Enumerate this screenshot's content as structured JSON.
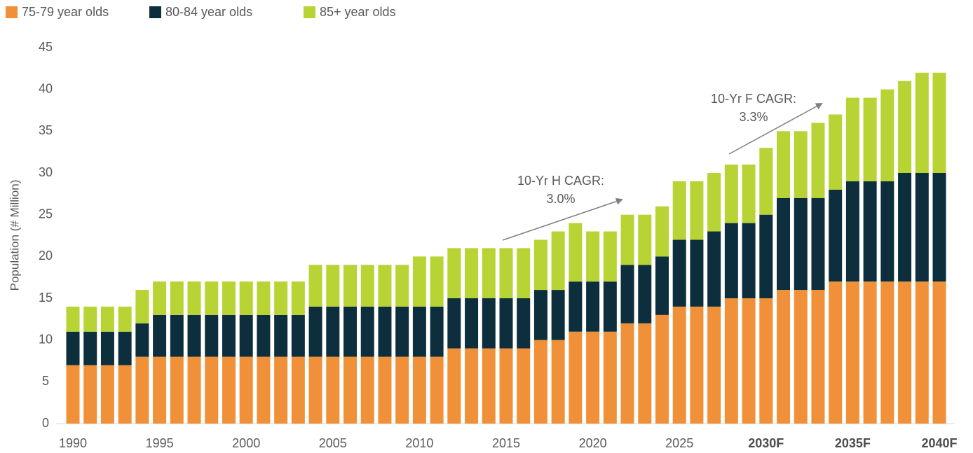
{
  "chart_data": {
    "type": "stacked_bar",
    "y_label": "Population (# Million)",
    "categories": [
      "1990",
      null,
      null,
      null,
      null,
      "1995",
      null,
      null,
      null,
      null,
      "2000",
      null,
      null,
      null,
      null,
      "2005",
      null,
      null,
      null,
      null,
      "2010",
      null,
      null,
      null,
      null,
      "2015",
      null,
      null,
      null,
      null,
      "2020",
      null,
      null,
      null,
      null,
      "2025",
      null,
      null,
      null,
      null,
      "2030F",
      null,
      null,
      null,
      null,
      "2035F",
      null,
      null,
      null,
      null,
      "2040F"
    ],
    "series": [
      {
        "name": "75-79 year olds",
        "color": "#f0913a",
        "values": [
          7,
          7,
          7,
          7,
          8,
          8,
          8,
          8,
          8,
          8,
          8,
          8,
          8,
          8,
          8,
          8,
          8,
          8,
          8,
          8,
          8,
          8,
          9,
          9,
          9,
          9,
          9,
          10,
          10,
          11,
          11,
          11,
          12,
          12,
          13,
          14,
          14,
          14,
          15,
          15,
          15,
          16,
          16,
          16,
          17,
          17,
          17,
          17,
          17,
          17,
          17
        ]
      },
      {
        "name": "80-84 year olds",
        "color": "#0d2f3d",
        "values": [
          4,
          4,
          4,
          4,
          4,
          5,
          5,
          5,
          5,
          5,
          5,
          5,
          5,
          5,
          6,
          6,
          6,
          6,
          6,
          6,
          6,
          6,
          6,
          6,
          6,
          6,
          6,
          6,
          6,
          6,
          6,
          6,
          7,
          7,
          7,
          8,
          8,
          9,
          9,
          9,
          10,
          11,
          11,
          11,
          11,
          12,
          12,
          12,
          13,
          13,
          13
        ]
      },
      {
        "name": "85+ year olds",
        "color": "#b7d334",
        "values": [
          3,
          3,
          3,
          3,
          4,
          4,
          4,
          4,
          4,
          4,
          4,
          4,
          4,
          4,
          5,
          5,
          5,
          5,
          5,
          5,
          6,
          6,
          6,
          6,
          6,
          6,
          6,
          6,
          7,
          7,
          6,
          6,
          6,
          6,
          6,
          7,
          7,
          7,
          7,
          7,
          8,
          8,
          8,
          9,
          9,
          10,
          10,
          11,
          11,
          12,
          12
        ]
      }
    ],
    "ylim": [
      0,
      45
    ],
    "yticks": [
      0,
      5,
      10,
      15,
      20,
      25,
      30,
      35,
      40,
      45
    ],
    "grid": false,
    "legend": "top-left",
    "annotations": [
      {
        "lines": [
          "10-Yr H CAGR:",
          "3.0%"
        ]
      },
      {
        "lines": [
          "10-Yr F CAGR:",
          "3.3%"
        ]
      }
    ]
  }
}
